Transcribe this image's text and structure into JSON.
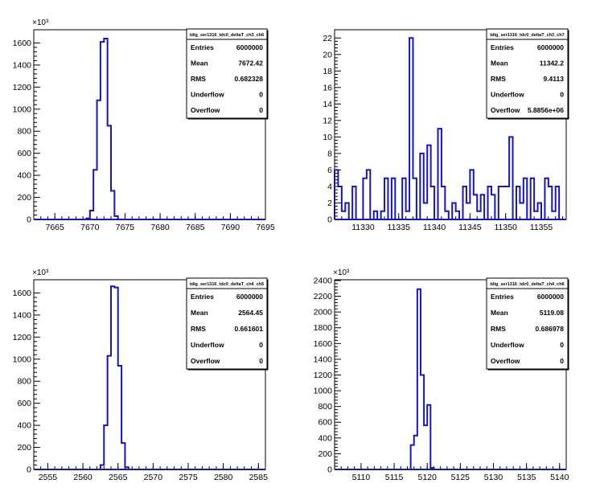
{
  "chart_data": [
    {
      "type": "histogram",
      "title": "tdig_ser1316_tdc0_deltaT_ch3_ch6",
      "xlim": [
        7662,
        7695
      ],
      "ylim": [
        0,
        1720000
      ],
      "y_exponent_label": "×10³",
      "y_scale_divisor": 1000,
      "y_ticks": [
        0,
        200,
        400,
        600,
        800,
        1000,
        1200,
        1400,
        1600
      ],
      "x_ticks": [
        7665,
        7670,
        7675,
        7680,
        7685,
        7690,
        7695
      ],
      "bin_edges_start": 7669.5,
      "bin_width": 0.5,
      "values": [
        10000,
        80000,
        450000,
        1080000,
        1610000,
        1640000,
        850000,
        260000,
        30000
      ],
      "stats": [
        {
          "label": "Entries",
          "value": "6000000"
        },
        {
          "label": "Mean",
          "value": "7672.42"
        },
        {
          "label": "RMS",
          "value": "0.682328"
        },
        {
          "label": "Underflow",
          "value": "0"
        },
        {
          "label": "Overflow",
          "value": "0"
        }
      ]
    },
    {
      "type": "histogram",
      "title": "tdig_ser1316_tdc0_deltaT_ch3_ch7",
      "xlim": [
        11326,
        11358.5
      ],
      "ylim": [
        0,
        23
      ],
      "y_exponent_label": "",
      "y_scale_divisor": 1,
      "y_ticks": [
        0,
        2,
        4,
        6,
        8,
        10,
        12,
        14,
        16,
        18,
        20,
        22
      ],
      "x_ticks": [
        11330,
        11335,
        11340,
        11345,
        11350,
        11355
      ],
      "bin_edges_start": 11326,
      "bin_width": 0.5,
      "values": [
        6,
        4,
        1,
        2,
        0,
        4,
        0,
        0,
        5,
        6,
        0,
        1,
        0,
        1,
        5,
        0,
        5,
        0,
        0,
        5,
        1,
        22,
        5,
        0,
        8,
        2,
        9,
        4,
        0,
        11,
        4,
        1,
        0,
        2,
        1,
        0,
        4,
        2,
        6,
        3,
        1,
        3,
        0,
        4,
        3,
        0,
        4,
        4,
        4,
        10,
        0,
        4,
        2,
        5,
        0,
        5,
        1,
        2,
        0,
        5,
        4,
        1,
        4
      ],
      "stats": [
        {
          "label": "Entries",
          "value": "6000000"
        },
        {
          "label": "Mean",
          "value": "11342.2"
        },
        {
          "label": "RMS",
          "value": "9.4113"
        },
        {
          "label": "Underflow",
          "value": "0"
        },
        {
          "label": "Overflow",
          "value": "5.8856e+06"
        }
      ]
    },
    {
      "type": "histogram",
      "title": "tdig_ser1316_tdc0_deltaT_ch4_ch5",
      "xlim": [
        2553,
        2586
      ],
      "ylim": [
        0,
        1720000
      ],
      "y_exponent_label": "×10³",
      "y_scale_divisor": 1000,
      "y_ticks": [
        0,
        200,
        400,
        600,
        800,
        1000,
        1200,
        1400,
        1600
      ],
      "x_ticks": [
        2555,
        2560,
        2565,
        2570,
        2575,
        2580,
        2585
      ],
      "bin_edges_start": 2562.5,
      "bin_width": 0.5,
      "values": [
        40000,
        400000,
        1030000,
        1660000,
        1650000,
        940000,
        240000,
        20000
      ],
      "stats": [
        {
          "label": "Entries",
          "value": "6000000"
        },
        {
          "label": "Mean",
          "value": "2564.45"
        },
        {
          "label": "RMS",
          "value": "0.661601"
        },
        {
          "label": "Underflow",
          "value": "0"
        },
        {
          "label": "Overflow",
          "value": "0"
        }
      ]
    },
    {
      "type": "histogram",
      "title": "tdig_ser1316_tdc0_deltaT_ch4_ch6",
      "xlim": [
        5106,
        5141
      ],
      "ylim": [
        0,
        2410000
      ],
      "y_exponent_label": "×10³",
      "y_scale_divisor": 1000,
      "y_ticks": [
        0,
        200,
        400,
        600,
        800,
        1000,
        1200,
        1400,
        1600,
        1800,
        2000,
        2200,
        2400
      ],
      "x_ticks": [
        5110,
        5115,
        5120,
        5125,
        5130,
        5135,
        5140
      ],
      "bin_edges_start": 5117.5,
      "bin_width": 0.5,
      "values": [
        310000,
        430000,
        2290000,
        1200000,
        560000,
        820000,
        20000
      ],
      "stats": [
        {
          "label": "Entries",
          "value": "6000000"
        },
        {
          "label": "Mean",
          "value": "5119.08"
        },
        {
          "label": "RMS",
          "value": "0.686978"
        },
        {
          "label": "Underflow",
          "value": "0"
        },
        {
          "label": "Overflow",
          "value": "0"
        }
      ]
    }
  ]
}
